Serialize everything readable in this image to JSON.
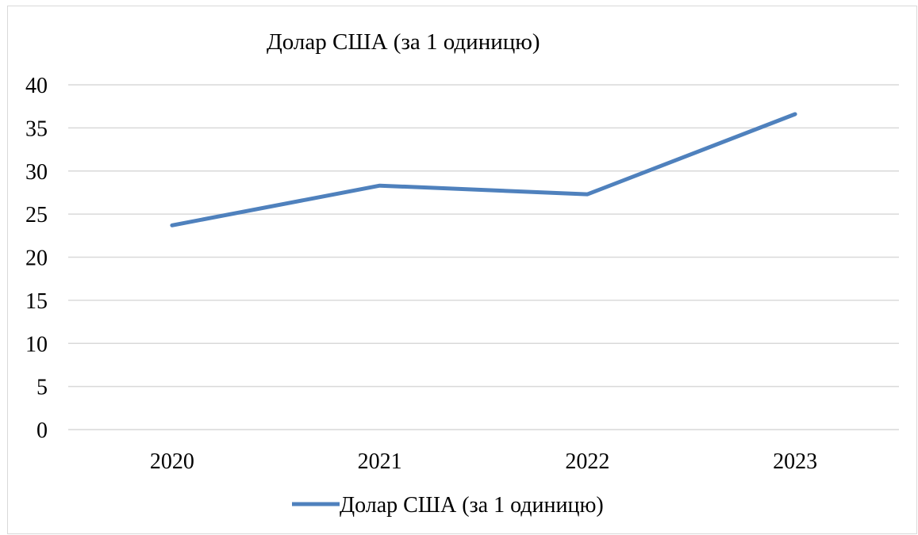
{
  "chart_data": {
    "type": "line",
    "title": "Долар США (за 1 одиницю)",
    "categories": [
      "2020",
      "2021",
      "2022",
      "2023"
    ],
    "series": [
      {
        "name": "Долар США (за 1 одиницю)",
        "values": [
          23.7,
          28.3,
          27.3,
          36.6
        ],
        "color": "#4f81bd"
      }
    ],
    "ylim": [
      0,
      40
    ],
    "yticks": [
      "0",
      "5",
      "10",
      "15",
      "20",
      "25",
      "30",
      "35",
      "40"
    ],
    "xlabel": "",
    "ylabel": "",
    "grid": true,
    "gridline_color": "#d9d9d9",
    "legend": "bottom"
  }
}
